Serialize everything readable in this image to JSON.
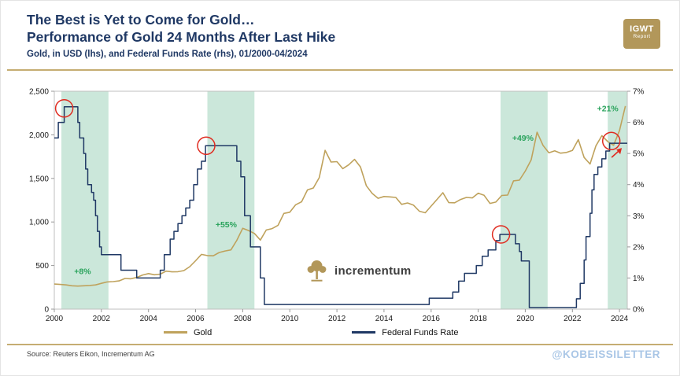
{
  "header": {
    "title1": "The Best is Yet to Come for Gold…",
    "title2": "Performance of Gold 24 Months After Last Hike",
    "subtitle": "Gold, in USD (lhs), and Federal Funds Rate (rhs), 01/2000-04/2024",
    "logo_line1": "IGWT",
    "logo_line2": "Report"
  },
  "watermark": {
    "text": "incrementum",
    "icon": "tree-icon"
  },
  "legend": {
    "items": [
      {
        "label": "Gold",
        "color": "#bfa25c"
      },
      {
        "label": "Federal Funds Rate",
        "color": "#1f3864"
      }
    ]
  },
  "footer": {
    "source": "Source: Reuters Eikon, Incrementum AG",
    "handle": "@KOBEISSILETTER"
  },
  "colors": {
    "navy": "#1f3864",
    "gold_line": "#bfa25c",
    "band": "#cbe7da",
    "green": "#2aa35c",
    "red": "#e02b20",
    "rule_gold": "#c5ad72",
    "logo_gold": "#b2975a",
    "handle_blue": "#a9c6e6"
  },
  "chart_data": {
    "type": "line",
    "title": "The Best is Yet to Come for Gold… Performance of Gold 24 Months After Last Hike",
    "subtitle": "Gold, in USD (lhs), and Federal Funds Rate (rhs), 01/2000-04/2024",
    "legend_position": "bottom",
    "grid": false,
    "x_axis": {
      "range": [
        2000,
        2024.33
      ],
      "ticks": [
        {
          "v": 2000,
          "label": "2000"
        },
        {
          "v": 2002,
          "label": "2002"
        },
        {
          "v": 2004,
          "label": "2004"
        },
        {
          "v": 2006,
          "label": "2006"
        },
        {
          "v": 2008,
          "label": "2008"
        },
        {
          "v": 2010,
          "label": "2010"
        },
        {
          "v": 2012,
          "label": "2012"
        },
        {
          "v": 2014,
          "label": "2014"
        },
        {
          "v": 2016,
          "label": "2016"
        },
        {
          "v": 2018,
          "label": "2018"
        },
        {
          "v": 2020,
          "label": "2020"
        },
        {
          "v": 2022,
          "label": "2022"
        },
        {
          "v": 2024,
          "label": "2024"
        }
      ]
    },
    "left_axis": {
      "label": "Gold, in USD (lhs)",
      "range": [
        0,
        2500
      ],
      "ticks": [
        {
          "v": 0,
          "label": "0"
        },
        {
          "v": 500,
          "label": "500"
        },
        {
          "v": 1000,
          "label": "1,000"
        },
        {
          "v": 1500,
          "label": "1,500"
        },
        {
          "v": 2000,
          "label": "2,000"
        },
        {
          "v": 2500,
          "label": "2,500"
        }
      ]
    },
    "right_axis": {
      "label": "Federal Funds Rate (rhs)",
      "range": [
        0,
        7
      ],
      "ticks": [
        {
          "v": 0,
          "label": "0%"
        },
        {
          "v": 1,
          "label": "1%"
        },
        {
          "v": 2,
          "label": "2%"
        },
        {
          "v": 3,
          "label": "3%"
        },
        {
          "v": 4,
          "label": "4%"
        },
        {
          "v": 5,
          "label": "5%"
        },
        {
          "v": 6,
          "label": "6%"
        },
        {
          "v": 7,
          "label": "7%"
        }
      ]
    },
    "shaded_regions": [
      {
        "x0": 2000.3,
        "x1": 2002.3
      },
      {
        "x0": 2006.5,
        "x1": 2008.5
      },
      {
        "x0": 2018.95,
        "x1": 2020.95
      },
      {
        "x0": 2023.5,
        "x1": 2024.33
      }
    ],
    "series": [
      {
        "name": "Gold",
        "axis": "left",
        "color": "#bfa25c",
        "width": 1.6,
        "step": false,
        "x_start": 2000.0,
        "x_step": 0.25,
        "y": [
          288,
          283,
          278,
          268,
          264,
          268,
          272,
          278,
          296,
          312,
          316,
          324,
          352,
          348,
          364,
          392,
          408,
          394,
          402,
          436,
          428,
          430,
          442,
          487,
          555,
          628,
          615,
          612,
          650,
          667,
          680,
          790,
          928,
          902,
          868,
          792,
          908,
          924,
          962,
          1098,
          1112,
          1198,
          1232,
          1368,
          1390,
          1508,
          1822,
          1688,
          1692,
          1612,
          1655,
          1718,
          1632,
          1415,
          1328,
          1272,
          1292,
          1288,
          1282,
          1202,
          1218,
          1194,
          1124,
          1106,
          1182,
          1258,
          1336,
          1222,
          1220,
          1258,
          1282,
          1276,
          1330,
          1306,
          1213,
          1228,
          1304,
          1309,
          1472,
          1480,
          1584,
          1712,
          2030,
          1880,
          1794,
          1816,
          1790,
          1798,
          1820,
          1945,
          1740,
          1665,
          1875,
          1990,
          1922,
          1880,
          2048,
          2330
        ]
      },
      {
        "name": "Federal Funds Rate",
        "axis": "right",
        "color": "#1f3864",
        "width": 1.5,
        "step": true,
        "x": [
          2000.0,
          2000.17,
          2000.42,
          2001.0,
          2001.08,
          2001.25,
          2001.33,
          2001.42,
          2001.58,
          2001.67,
          2001.75,
          2001.83,
          2001.92,
          2002.0,
          2002.83,
          2003.5,
          2004.5,
          2004.67,
          2004.92,
          2005.08,
          2005.25,
          2005.42,
          2005.58,
          2005.75,
          2005.92,
          2006.08,
          2006.25,
          2006.42,
          2007.75,
          2007.92,
          2008.08,
          2008.33,
          2008.75,
          2008.92,
          2015.92,
          2016.92,
          2017.17,
          2017.42,
          2017.92,
          2018.17,
          2018.42,
          2018.75,
          2018.92,
          2019.58,
          2019.75,
          2019.83,
          2020.17,
          2022.17,
          2022.33,
          2022.5,
          2022.58,
          2022.75,
          2022.83,
          2022.92,
          2023.08,
          2023.25,
          2023.42,
          2023.58,
          2024.33
        ],
        "y": [
          5.5,
          6.0,
          6.5,
          6.0,
          5.5,
          5.0,
          4.5,
          4.0,
          3.75,
          3.5,
          3.0,
          2.5,
          2.0,
          1.75,
          1.25,
          1.0,
          1.25,
          1.75,
          2.25,
          2.5,
          2.75,
          3.0,
          3.25,
          3.5,
          4.0,
          4.5,
          4.75,
          5.25,
          4.75,
          4.25,
          3.0,
          2.0,
          1.0,
          0.15,
          0.35,
          0.55,
          0.9,
          1.15,
          1.4,
          1.7,
          1.9,
          2.2,
          2.4,
          2.1,
          1.85,
          1.55,
          0.05,
          0.33,
          0.83,
          1.58,
          2.33,
          3.08,
          3.83,
          4.33,
          4.57,
          4.83,
          5.08,
          5.33,
          5.33
        ]
      }
    ],
    "annotations": {
      "gain_labels": [
        {
          "text": "+8%",
          "x": 2001.2,
          "y": 400
        },
        {
          "text": "+55%",
          "x": 2007.3,
          "y": 940
        },
        {
          "text": "+49%",
          "x": 2019.9,
          "y": 1930
        },
        {
          "text": "+21%",
          "x": 2023.5,
          "y": 2270
        }
      ],
      "circles": [
        {
          "x": 2000.42,
          "y": 6.45
        },
        {
          "x": 2006.45,
          "y": 5.25
        },
        {
          "x": 2018.97,
          "y": 2.4
        },
        {
          "x": 2023.65,
          "y": 5.4
        }
      ],
      "arrow": {
        "x": 2023.9,
        "y": 5.0
      }
    }
  }
}
